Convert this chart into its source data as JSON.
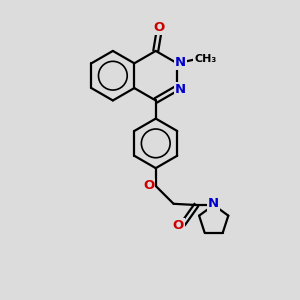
{
  "bg_color": "#dcdcdc",
  "bond_color": "#000000",
  "N_color": "#0000cc",
  "O_color": "#cc0000",
  "fig_size": [
    3.0,
    3.0
  ],
  "dpi": 100,
  "bl": 1.0,
  "lw": 1.6,
  "fs": 9.5,
  "xlim": [
    -4.5,
    4.5
  ],
  "ylim": [
    -7.5,
    4.5
  ]
}
